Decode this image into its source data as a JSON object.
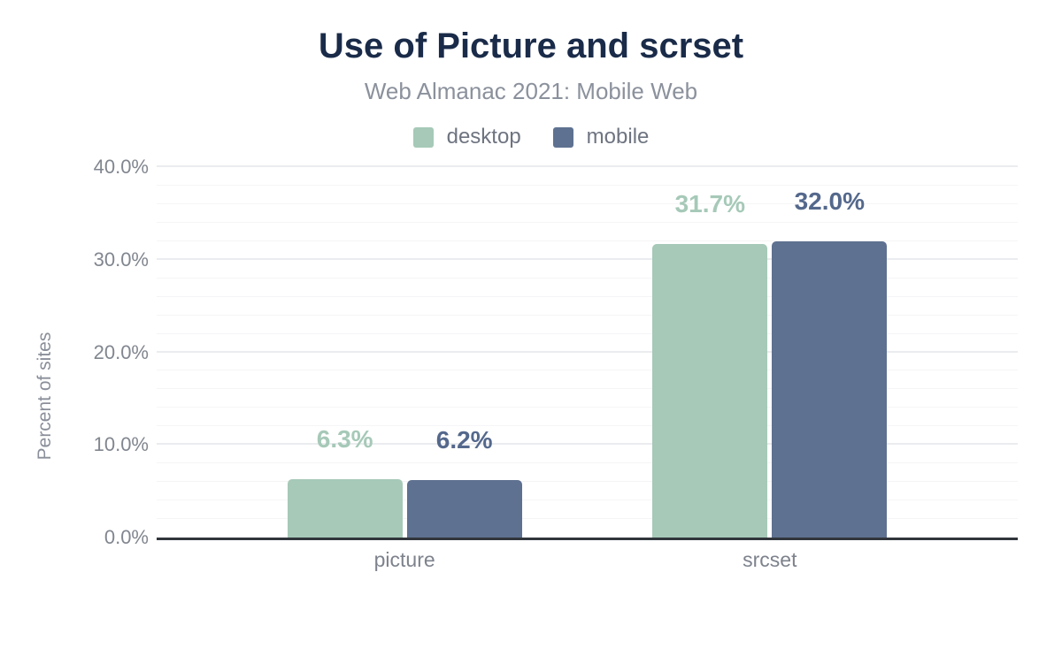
{
  "chart": {
    "title": "Use of Picture and scrset",
    "subtitle": "Web Almanac 2021: Mobile Web",
    "ylabel": "Percent of sites"
  },
  "chart_data": {
    "type": "bar",
    "title": "Use of Picture and scrset",
    "subtitle": "Web Almanac 2021: Mobile Web",
    "xlabel": "",
    "ylabel": "Percent of sites",
    "ylim": [
      0,
      40
    ],
    "legend_position": "top",
    "grid": {
      "on": true,
      "minor_step": 2,
      "major_step": 10
    },
    "categories": [
      "picture",
      "srcset"
    ],
    "series": [
      {
        "name": "desktop",
        "color": "#a6c9b8",
        "label_color": "#a6c9b8",
        "values": [
          6.3,
          31.7
        ],
        "labels": [
          "6.3%",
          "31.7%"
        ]
      },
      {
        "name": "mobile",
        "color": "#5e7190",
        "label_color": "#54688c",
        "values": [
          6.2,
          32.0
        ],
        "labels": [
          "6.2%",
          "32.0%"
        ]
      }
    ],
    "yticks": [
      {
        "value": 0,
        "label": "0.0%"
      },
      {
        "value": 10,
        "label": "10.0%"
      },
      {
        "value": 20,
        "label": "20.0%"
      },
      {
        "value": 30,
        "label": "30.0%"
      },
      {
        "value": 40,
        "label": "40.0%"
      }
    ],
    "colors": {
      "title": "#1a2b49",
      "subtitle": "#8b919c",
      "axis_line": "#31353b",
      "tick_label": "#81868f"
    }
  }
}
